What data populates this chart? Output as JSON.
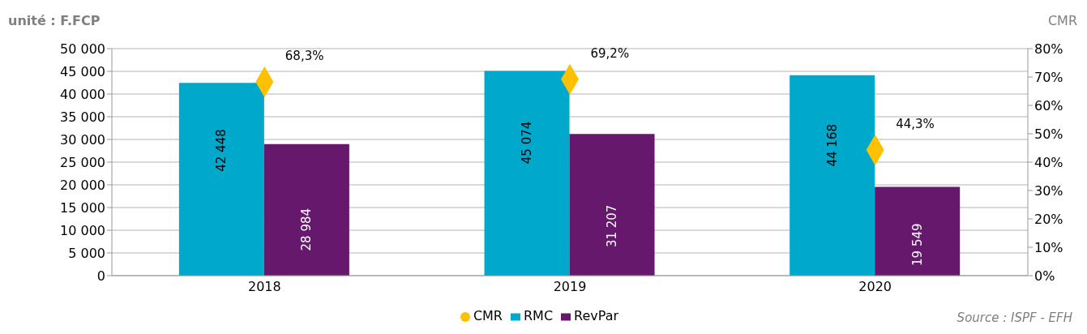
{
  "chart_data": {
    "type": "bar",
    "ylabel": "unité : F.FCP",
    "y2label": "CMR",
    "categories": [
      "2018",
      "2019",
      "2020"
    ],
    "series": [
      {
        "name": "RMC",
        "color": "#00a8cc",
        "values": [
          42448,
          45074,
          44168
        ],
        "value_labels": [
          "42 448",
          "45 074",
          "44 168"
        ]
      },
      {
        "name": "RevPar",
        "color": "#66186c",
        "values": [
          28984,
          31207,
          19549
        ],
        "value_labels": [
          "28 984",
          "31 207",
          "19 549"
        ]
      },
      {
        "name": "CMR",
        "type": "scatter",
        "axis": "y2",
        "marker": "diamond",
        "color": "#ffc000",
        "values": [
          68.3,
          69.2,
          44.3
        ],
        "value_labels": [
          "68,3%",
          "69,2%",
          "44,3%"
        ]
      }
    ],
    "ylim": [
      0,
      50000
    ],
    "yticks": [
      {
        "value": 0,
        "label": "0"
      },
      {
        "value": 5000,
        "label": "5 000"
      },
      {
        "value": 10000,
        "label": "10 000"
      },
      {
        "value": 15000,
        "label": "15 000"
      },
      {
        "value": 20000,
        "label": "20 000"
      },
      {
        "value": 25000,
        "label": "25 000"
      },
      {
        "value": 30000,
        "label": "30 000"
      },
      {
        "value": 35000,
        "label": "35 000"
      },
      {
        "value": 40000,
        "label": "40 000"
      },
      {
        "value": 45000,
        "label": "45 000"
      },
      {
        "value": 50000,
        "label": "50 000"
      }
    ],
    "y2lim": [
      0,
      80
    ],
    "y2ticks": [
      {
        "value": 0,
        "label": "0%"
      },
      {
        "value": 10,
        "label": "10%"
      },
      {
        "value": 20,
        "label": "20%"
      },
      {
        "value": 30,
        "label": "30%"
      },
      {
        "value": 40,
        "label": "40%"
      },
      {
        "value": 50,
        "label": "50%"
      },
      {
        "value": 60,
        "label": "60%"
      },
      {
        "value": 70,
        "label": "70%"
      },
      {
        "value": 80,
        "label": "80%"
      }
    ],
    "grid": "y",
    "legend": "bottom",
    "annotations": [
      "Source : ISPF - EFH"
    ]
  }
}
